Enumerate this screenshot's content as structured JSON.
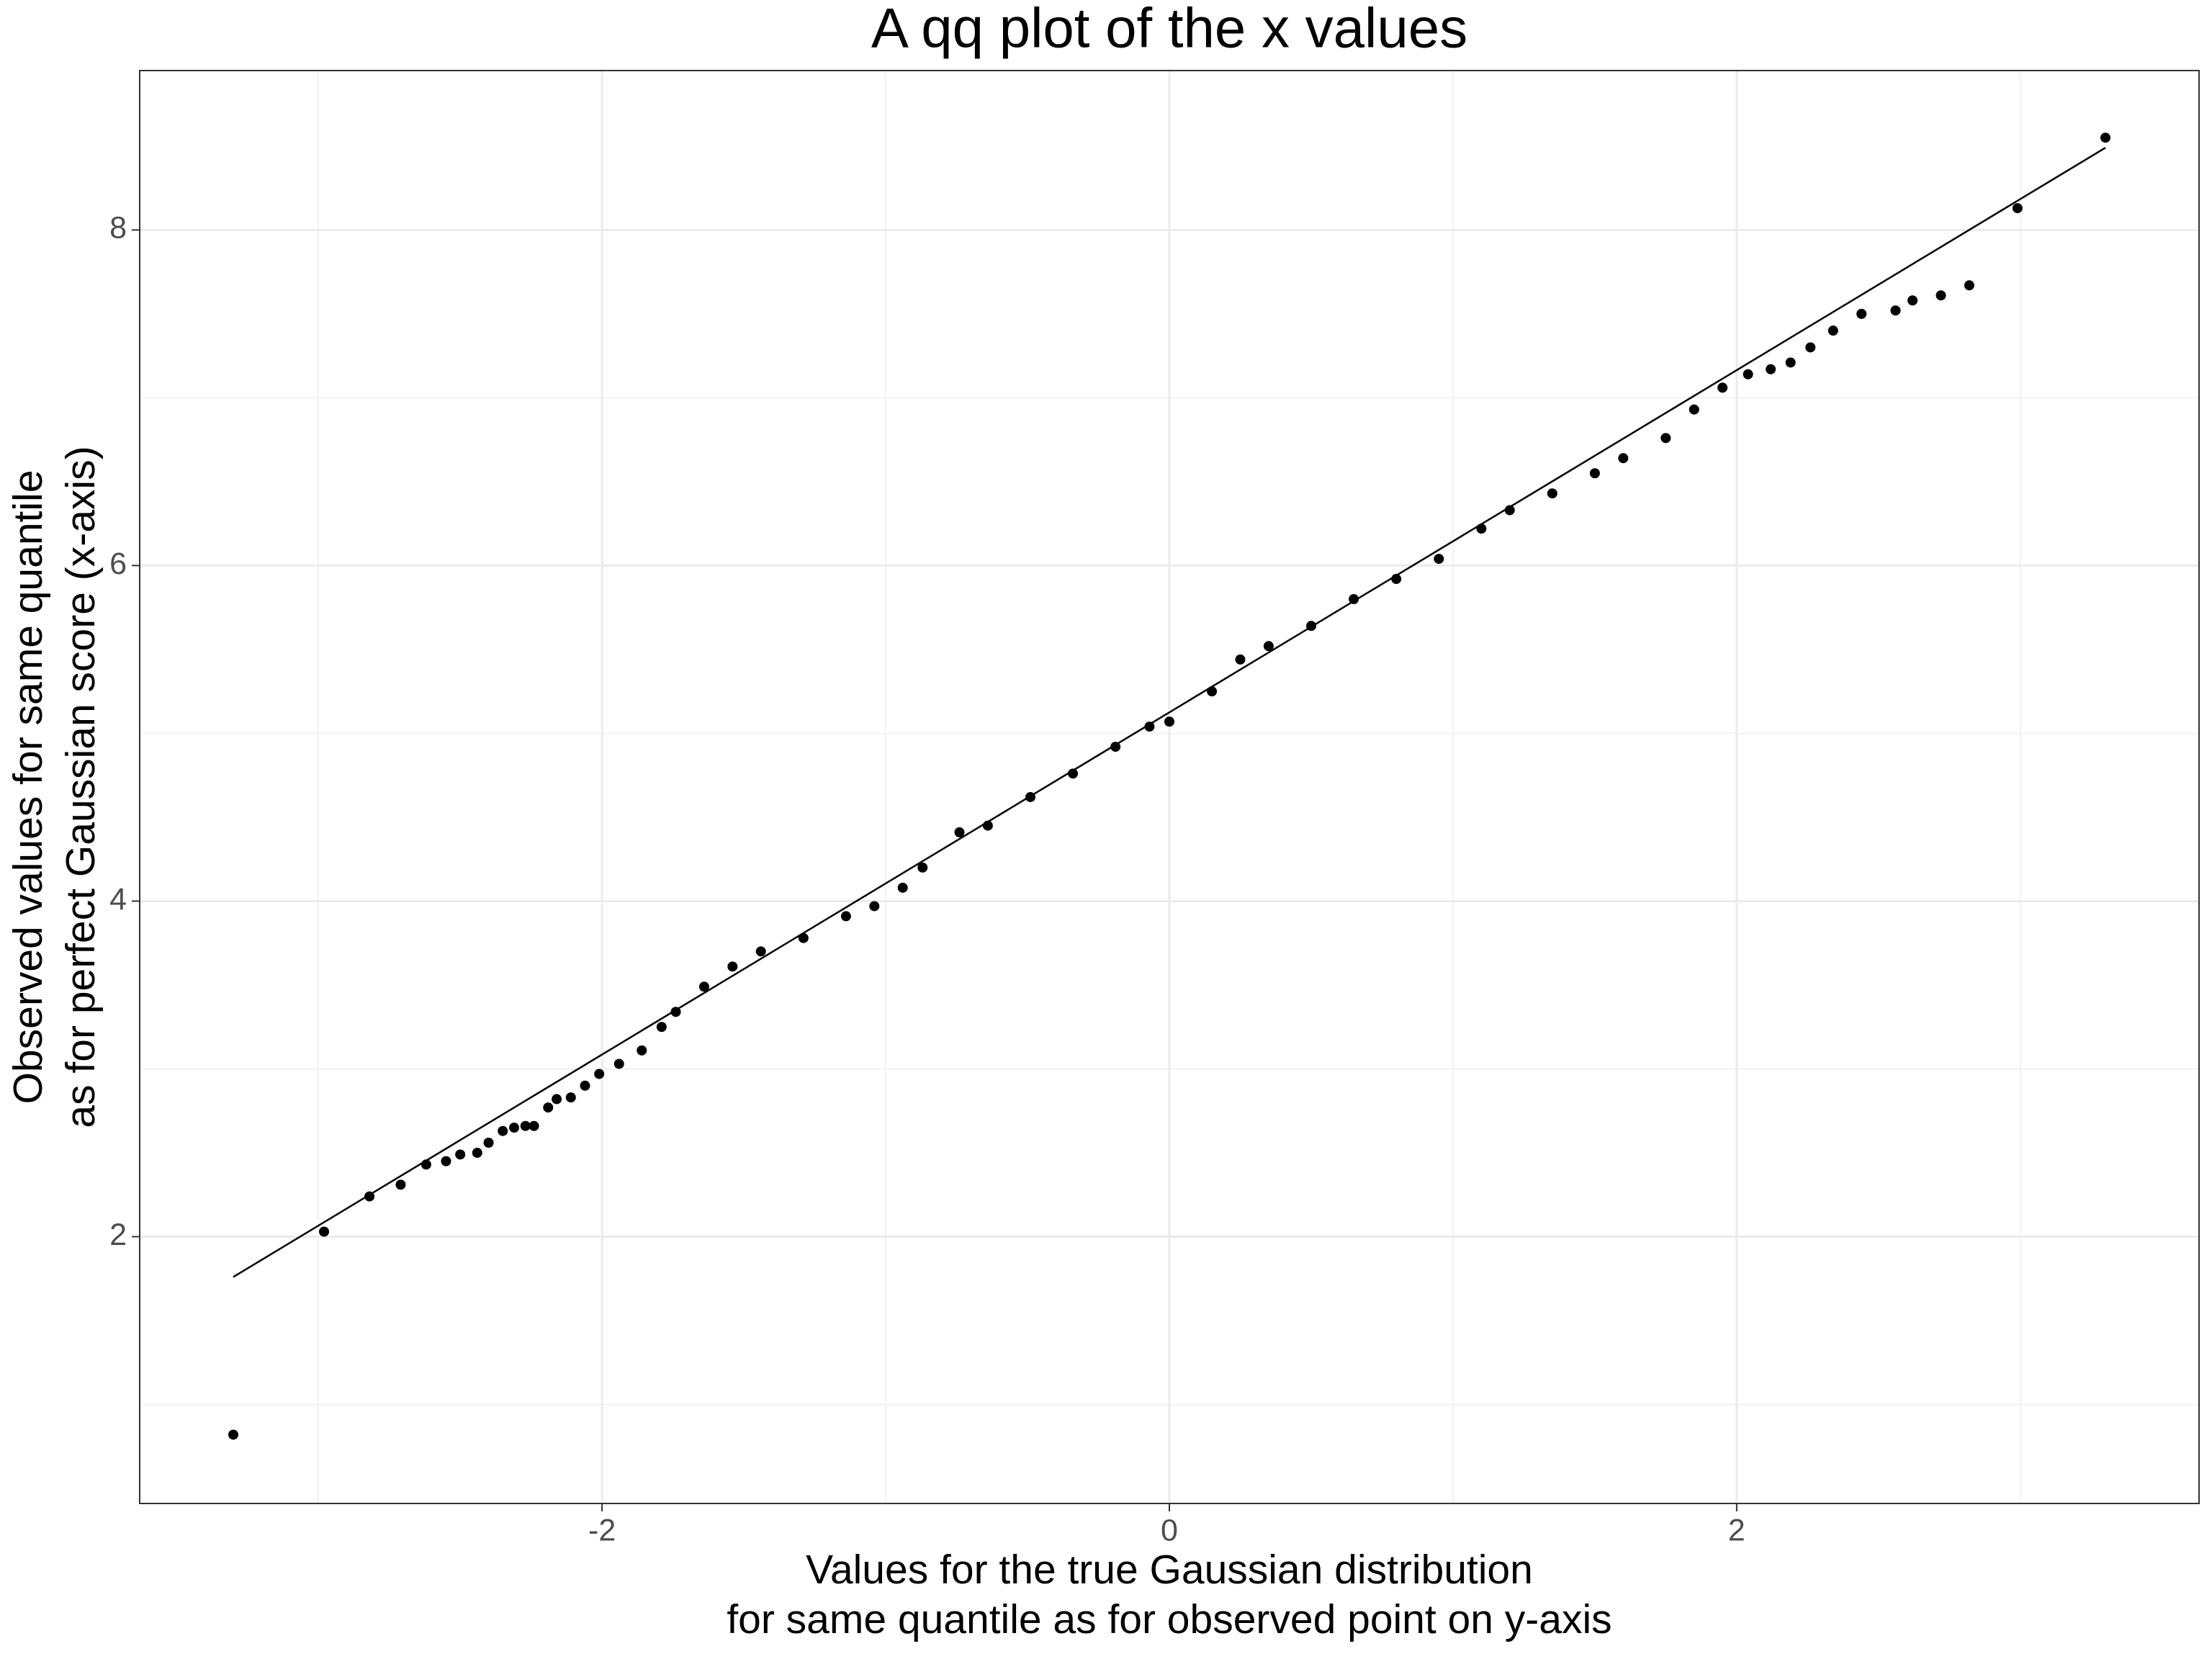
{
  "chart_data": {
    "type": "scatter",
    "title": "A qq plot of the x values",
    "xlabel": [
      "Values for the true Gaussian distribution",
      "for same quantile as for observed point on y-axis"
    ],
    "ylabel": [
      "Observed values for same quantile",
      "as for perfect Gaussian score (x-axis)"
    ],
    "x": [
      -3.3,
      -2.98,
      -2.82,
      -2.71,
      -2.62,
      -2.55,
      -2.5,
      -2.44,
      -2.4,
      -2.35,
      -2.31,
      -2.27,
      -2.24,
      -2.19,
      -2.16,
      -2.11,
      -2.06,
      -2.01,
      -1.94,
      -1.86,
      -1.79,
      -1.74,
      -1.64,
      -1.54,
      -1.44,
      -1.29,
      -1.14,
      -1.04,
      -0.94,
      -0.87,
      -0.74,
      -0.64,
      -0.49,
      -0.34,
      -0.19,
      -0.07,
      0.0,
      0.15,
      0.25,
      0.35,
      0.5,
      0.65,
      0.8,
      0.95,
      1.1,
      1.2,
      1.35,
      1.5,
      1.6,
      1.75,
      1.85,
      1.95,
      2.04,
      2.12,
      2.19,
      2.26,
      2.34,
      2.44,
      2.56,
      2.62,
      2.72,
      2.82,
      2.99,
      3.3
    ],
    "y": [
      0.82,
      2.03,
      2.24,
      2.31,
      2.43,
      2.45,
      2.49,
      2.5,
      2.56,
      2.63,
      2.65,
      2.66,
      2.66,
      2.77,
      2.82,
      2.83,
      2.9,
      2.97,
      3.03,
      3.11,
      3.25,
      3.34,
      3.49,
      3.61,
      3.7,
      3.78,
      3.91,
      3.97,
      4.08,
      4.2,
      4.41,
      4.45,
      4.62,
      4.76,
      4.92,
      5.04,
      5.07,
      5.25,
      5.44,
      5.52,
      5.64,
      5.8,
      5.92,
      6.04,
      6.22,
      6.33,
      6.43,
      6.55,
      6.64,
      6.76,
      6.93,
      7.06,
      7.14,
      7.17,
      7.21,
      7.3,
      7.4,
      7.5,
      7.52,
      7.58,
      7.61,
      7.67,
      8.13,
      8.55
    ],
    "color": "#000000",
    "reference_line": {
      "x": [
        -3.3,
        3.3
      ],
      "y": [
        1.76,
        8.49
      ],
      "color": "#000000"
    },
    "xlim": [
      -3.63,
      3.63
    ],
    "ylim": [
      0.41,
      8.95
    ],
    "xticks": [
      -2,
      0,
      2
    ],
    "yticks": [
      2,
      4,
      6,
      8
    ],
    "x_minor_grid": [
      -3,
      -1,
      1,
      3
    ],
    "y_minor_grid": [
      1,
      3,
      5,
      7
    ],
    "grid": true
  }
}
